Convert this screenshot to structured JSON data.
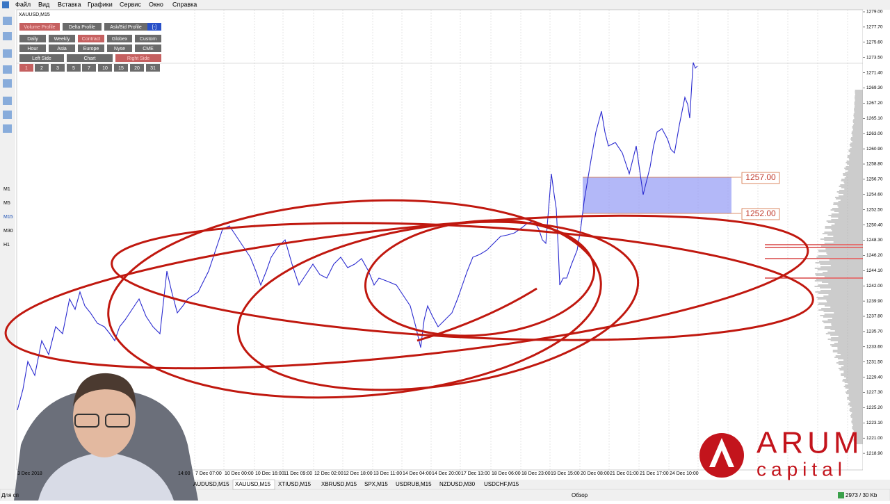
{
  "menu": [
    "Файл",
    "Вид",
    "Вставка",
    "Графики",
    "Сервис",
    "Окно",
    "Справка"
  ],
  "chart": {
    "symbol": "XAUUSD,M15",
    "panel": {
      "row1": [
        "Volume Profile",
        "Delta Profile",
        "Ask/Bid Profile",
        "[-]"
      ],
      "row2": [
        "Daily",
        "Weekly",
        "Contract",
        "Globex",
        "Custom"
      ],
      "row3": [
        "Hour",
        "Asia",
        "Europe",
        "Nyse",
        "CME"
      ],
      "row4": [
        "Left Side",
        "Chart",
        "Right Side"
      ],
      "row5": [
        "1",
        "2",
        "3",
        "5",
        "7",
        "10",
        "15",
        "20",
        "31"
      ]
    },
    "price_labels": [
      "1279.00",
      "1277.70",
      "1275.60",
      "1273.50",
      "1271.40",
      "1269.30",
      "1267.20",
      "1265.10",
      "1263.00",
      "1260.90",
      "1258.80",
      "1256.70",
      "1254.60",
      "1252.50",
      "1250.40",
      "1248.30",
      "1246.20",
      "1244.10",
      "1242.00",
      "1239.90",
      "1237.80",
      "1235.70",
      "1233.60",
      "1231.50",
      "1229.40",
      "1227.30",
      "1225.20",
      "1223.10",
      "1221.00",
      "1218.90"
    ],
    "zone_labels": [
      "1257.00",
      "1252.00"
    ],
    "time_labels": [
      "3 Dec 2018",
      "14:00",
      "7 Dec 07:00",
      "10 Dec 00:00",
      "10 Dec 16:00",
      "11 Dec 09:00",
      "12 Dec 02:00",
      "12 Dec 18:00",
      "13 Dec 11:00",
      "14 Dec 04:00",
      "14 Dec 20:00",
      "17 Dec 13:00",
      "18 Dec 06:00",
      "18 Dec 23:00",
      "19 Dec 15:00",
      "20 Dec 08:00",
      "21 Dec 01:00",
      "21 Dec 17:00",
      "24 Dec 10:00"
    ]
  },
  "timeframes": [
    "M1",
    "M5",
    "M15",
    "M30",
    "H1"
  ],
  "tabs": [
    "AUDUSD,M15",
    "XAUUSD,M15",
    "XTIUSD,M15",
    "XBRUSD,M15",
    "SPX,M15",
    "USDRUB,M15",
    "NZDUSD,M30",
    "USDCHF,M15"
  ],
  "status": {
    "left": "Для сп",
    "middle": "Обзор",
    "right": "2973 / 30 Kb"
  },
  "logo": {
    "name": "ARUM",
    "sub": "capital"
  }
}
